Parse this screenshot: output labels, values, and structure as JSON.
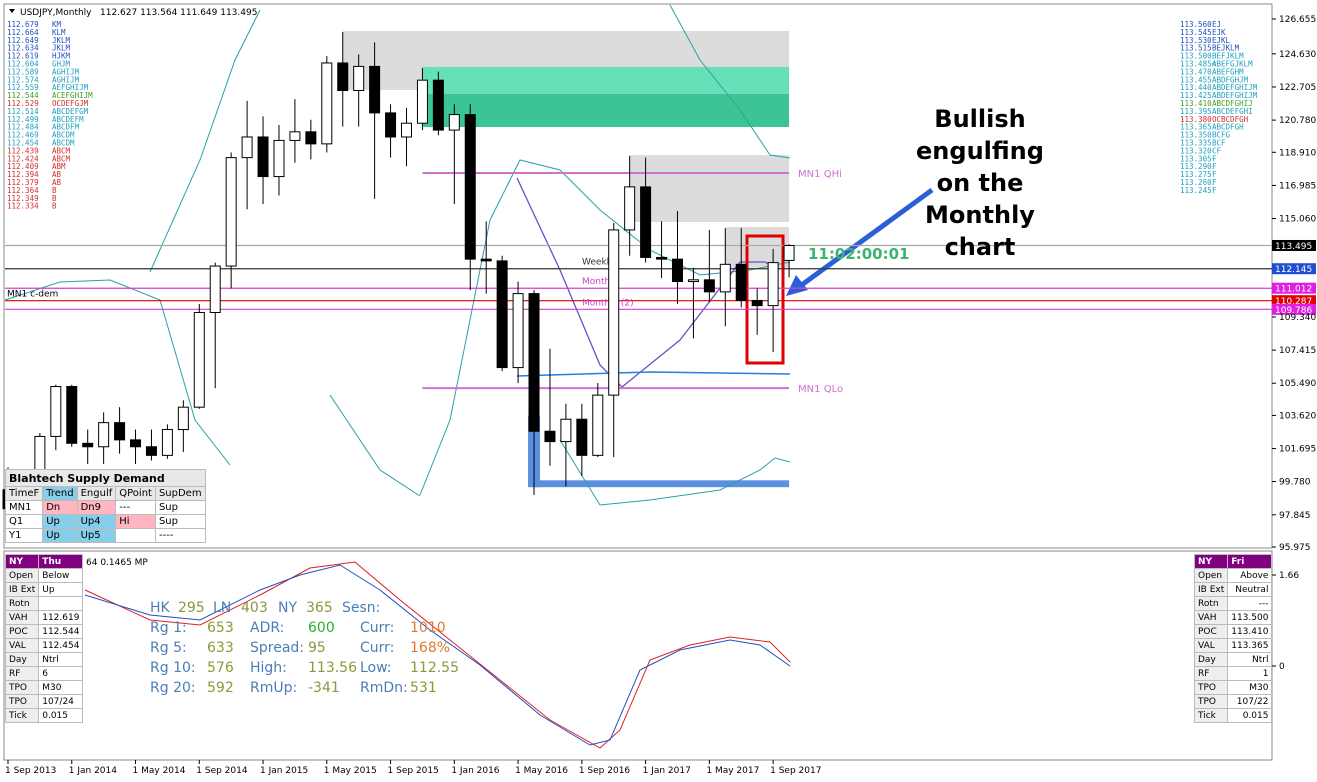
{
  "header": {
    "title": "USDJPY,Monthly",
    "ohlc": "112.627 113.564 111.649 113.495"
  },
  "chart_data": {
    "type": "candlestick",
    "x": [
      "2013-09-01",
      "2013-10-01",
      "2013-11-01",
      "2013-12-01",
      "2014-01-01",
      "2014-02-01",
      "2014-03-01",
      "2014-04-01",
      "2014-05-01",
      "2014-06-01",
      "2014-07-01",
      "2014-08-01",
      "2014-09-01",
      "2014-10-01",
      "2014-11-01",
      "2014-12-01",
      "2015-01-01",
      "2015-02-01",
      "2015-03-01",
      "2015-04-01",
      "2015-05-01",
      "2015-06-01",
      "2015-07-01",
      "2015-08-01",
      "2015-09-01",
      "2015-10-01",
      "2015-11-01",
      "2015-12-01",
      "2016-01-01",
      "2016-02-01",
      "2016-03-01",
      "2016-04-01",
      "2016-05-01",
      "2016-06-01",
      "2016-07-01",
      "2016-08-01",
      "2016-09-01",
      "2016-10-01",
      "2016-11-01",
      "2016-12-01",
      "2017-01-01",
      "2017-02-01",
      "2017-03-01",
      "2017-04-01",
      "2017-05-01",
      "2017-06-01",
      "2017-07-01",
      "2017-08-01",
      "2017-09-01",
      "2017-10-01"
    ],
    "open": [
      99.3,
      98.2,
      98.4,
      102.4,
      105.3,
      102.0,
      101.8,
      103.2,
      102.2,
      101.8,
      101.3,
      102.8,
      104.1,
      109.6,
      112.3,
      118.6,
      119.8,
      117.5,
      119.6,
      120.1,
      119.4,
      124.1,
      122.5,
      123.9,
      121.2,
      119.8,
      120.6,
      123.1,
      120.2,
      121.1,
      112.7,
      112.6,
      106.4,
      110.7,
      102.7,
      102.1,
      103.4,
      101.3,
      104.8,
      114.4,
      116.9,
      112.8,
      112.7,
      111.4,
      111.5,
      110.8,
      112.4,
      110.3,
      110.0,
      112.627
    ],
    "high": [
      100.6,
      99.0,
      102.6,
      105.4,
      105.4,
      102.8,
      103.8,
      104.1,
      102.8,
      102.8,
      103.1,
      104.5,
      110.1,
      112.5,
      118.9,
      121.9,
      121.0,
      120.5,
      122.0,
      120.8,
      124.5,
      125.9,
      124.6,
      125.3,
      121.7,
      121.5,
      123.8,
      123.6,
      121.7,
      121.7,
      114.9,
      112.9,
      111.4,
      110.9,
      107.5,
      104.3,
      104.3,
      105.5,
      114.8,
      118.7,
      118.6,
      114.9,
      115.5,
      112.2,
      114.4,
      114.5,
      114.5,
      111.0,
      113.3,
      113.564
    ],
    "low": [
      96.9,
      96.9,
      97.6,
      101.6,
      101.8,
      100.8,
      100.8,
      101.4,
      100.8,
      101.0,
      101.1,
      101.5,
      104.0,
      105.2,
      111.0,
      115.6,
      115.9,
      116.4,
      118.3,
      118.5,
      118.9,
      120.4,
      120.4,
      116.2,
      118.6,
      118.1,
      120.2,
      119.9,
      115.9,
      110.9,
      110.7,
      106.2,
      105.5,
      99.0,
      100.7,
      99.5,
      100.1,
      101.2,
      101.2,
      112.9,
      112.5,
      111.6,
      110.1,
      108.1,
      110.2,
      108.8,
      109.9,
      108.3,
      107.3,
      111.649
    ],
    "close": [
      98.2,
      98.4,
      102.4,
      105.3,
      102.0,
      101.8,
      103.2,
      102.2,
      101.8,
      101.3,
      102.8,
      104.1,
      109.6,
      112.3,
      118.6,
      119.8,
      117.5,
      119.6,
      120.1,
      119.4,
      124.1,
      122.5,
      123.9,
      121.2,
      119.8,
      120.6,
      123.1,
      120.2,
      121.1,
      112.7,
      112.6,
      106.4,
      110.7,
      102.7,
      102.1,
      103.4,
      101.3,
      104.8,
      114.4,
      116.9,
      112.8,
      112.7,
      111.4,
      111.5,
      110.8,
      112.4,
      110.3,
      110.0,
      112.5,
      113.495
    ],
    "ylim": [
      95.975,
      126.655
    ],
    "yticks": [
      126.655,
      {
        "value": 124.63,
        "label": "124.630"
      },
      122.705,
      {
        "value": 120.78,
        "label": "120.780"
      },
      {
        "value": 118.91,
        "label": "118.910"
      },
      116.985,
      {
        "value": 115.06,
        "label": "115.060"
      },
      {
        "value": 109.34,
        "label": "109.340"
      },
      107.415,
      {
        "value": 105.49,
        "label": "105.490"
      },
      {
        "value": 103.62,
        "label": "103.620"
      },
      101.695,
      {
        "value": 99.78,
        "label": "99.780"
      },
      97.845,
      95.975
    ],
    "xticks": [
      {
        "value": "2013-09-01",
        "label": "1 Sep 2013"
      },
      {
        "value": "2014-01-01",
        "label": "1 Jan 2014"
      },
      {
        "value": "2014-05-01",
        "label": "1 May 2014"
      },
      {
        "value": "2014-09-01",
        "label": "1 Sep 2014"
      },
      {
        "value": "2015-01-01",
        "label": "1 Jan 2015"
      },
      {
        "value": "2015-05-01",
        "label": "1 May 2015"
      },
      {
        "value": "2015-09-01",
        "label": "1 Sep 2015"
      },
      {
        "value": "2016-01-01",
        "label": "1 Jan 2016"
      },
      {
        "value": "2016-05-01",
        "label": "1 May 2016"
      },
      {
        "value": "2016-09-01",
        "label": "1 Sep 2016"
      },
      {
        "value": "2017-01-01",
        "label": "1 Jan 2017"
      },
      {
        "value": "2017-05-01",
        "label": "1 May 2017"
      },
      {
        "value": "2017-09-01",
        "label": "1 Sep 2017"
      }
    ],
    "zones": [
      {
        "start": "2015-06-01",
        "from": 122.53,
        "to": 125.96,
        "color": "#dcdcdc"
      },
      {
        "start": "2015-11-01",
        "from": 122.3,
        "to": 123.87,
        "color": "#66e0b8"
      },
      {
        "start": "2015-11-01",
        "from": 120.38,
        "to": 122.3,
        "color": "#3cc494"
      },
      {
        "start": "2016-12-01",
        "from": 114.86,
        "to": 118.75,
        "color": "#dcdcdc"
      },
      {
        "start": "2017-06-01",
        "from": 112.2,
        "to": 114.57,
        "color": "#dcdcdc"
      },
      {
        "start": "2016-06-01",
        "end": "2016-06-01",
        "from": 99.45,
        "to": 103.6,
        "color": "#5b8fe0"
      },
      {
        "start": "2016-06-01",
        "from": 99.45,
        "to": 99.85,
        "color": "#5b8fe0"
      }
    ],
    "levels": [
      {
        "label": "MN1 QHi",
        "value": 117.71,
        "start": "2015-11-01",
        "color": "#d070d0"
      },
      {
        "label": "MN1 QLo",
        "value": 105.21,
        "start": "2015-11-01",
        "color": "#d070d0"
      }
    ],
    "markers": [
      {
        "value": 113.495,
        "color": "#000000",
        "line": "#aaaaaa"
      },
      {
        "value": 112.145,
        "color": "#1f4fd0",
        "line": "#333333",
        "label": "Weekly",
        "label_pos": "middle"
      },
      {
        "value": 111.012,
        "color": "#e020e0",
        "line": "#d040d0",
        "label": "Monthly",
        "label_pos": "middle"
      },
      {
        "value": 110.287,
        "color": "#e00000",
        "line": "#e00000",
        "label": "MN1 c-dem",
        "label_pos": "left"
      },
      {
        "value": 109.786,
        "color": "#e020e0",
        "line": "#d040d0",
        "label": "Monthly (2)",
        "label_pos": "middle"
      }
    ],
    "countdown": "11:02:00:01",
    "annotation": [
      "Bullish",
      "engulfing",
      "on the",
      "Monthly",
      "chart"
    ]
  },
  "left_profile": [
    {
      "price": "112.679",
      "tpo": "KM",
      "color": "#2050c0"
    },
    {
      "price": "112.664",
      "tpo": "KLM",
      "color": "#2050c0"
    },
    {
      "price": "112.649",
      "tpo": "JKLM",
      "color": "#2050c0"
    },
    {
      "price": "112.634",
      "tpo": "JKLM",
      "color": "#2050c0"
    },
    {
      "price": "112.619",
      "tpo": "HJKM",
      "color": "#2050c0"
    },
    {
      "price": "112.604",
      "tpo": "GHJM",
      "color": "#20a0c0"
    },
    {
      "price": "112.589",
      "tpo": "AGHIJM",
      "color": "#20a0c0"
    },
    {
      "price": "112.574",
      "tpo": "AGHIJM",
      "color": "#20a0c0"
    },
    {
      "price": "112.559",
      "tpo": "AEFGHIJM",
      "color": "#20a0c0"
    },
    {
      "price": "112.544",
      "tpo": "ACEFGHIJM",
      "color": "#40a020"
    },
    {
      "price": "112.529",
      "tpo": "OCDEFGJM",
      "color": "#d03030"
    },
    {
      "price": "112.514",
      "tpo": "ABCDEFGM",
      "color": "#20a0c0"
    },
    {
      "price": "112.499",
      "tpo": "ABCDEFM",
      "color": "#20a0c0"
    },
    {
      "price": "112.484",
      "tpo": "ABCDFM",
      "color": "#20a0c0"
    },
    {
      "price": "112.469",
      "tpo": "ABCDM",
      "color": "#20a0c0"
    },
    {
      "price": "112.454",
      "tpo": "ABCDM",
      "color": "#20a0c0"
    },
    {
      "price": "112.439",
      "tpo": "ABCM",
      "color": "#d03030"
    },
    {
      "price": "112.424",
      "tpo": "ABCM",
      "color": "#d03030"
    },
    {
      "price": "112.409",
      "tpo": "ABM",
      "color": "#d03030"
    },
    {
      "price": "112.394",
      "tpo": "AB",
      "color": "#d03030"
    },
    {
      "price": "112.379",
      "tpo": "AB",
      "color": "#d03030"
    },
    {
      "price": "112.364",
      "tpo": "B",
      "color": "#d03030"
    },
    {
      "price": "112.349",
      "tpo": "B",
      "color": "#d03030"
    },
    {
      "price": "112.334",
      "tpo": "B",
      "color": "#d03030"
    }
  ],
  "right_profile": [
    {
      "price": "113.560",
      "tpo": "EJ",
      "color": "#2050c0"
    },
    {
      "price": "113.545",
      "tpo": "EJK",
      "color": "#2050c0"
    },
    {
      "price": "113.530",
      "tpo": "EJKL",
      "color": "#2050c0"
    },
    {
      "price": "113.515",
      "tpo": "BEJKLM",
      "color": "#2050c0"
    },
    {
      "price": "113.500",
      "tpo": "BEFJKLM",
      "color": "#20a0c0"
    },
    {
      "price": "113.485<",
      "tpo": "ABEFGJKLM",
      "color": "#20a0c0"
    },
    {
      "price": "113.470",
      "tpo": "ABEFGHM",
      "color": "#20a0c0"
    },
    {
      "price": "113.455",
      "tpo": "ABDFGHJM",
      "color": "#20a0c0"
    },
    {
      "price": "113.440",
      "tpo": "ABDEFGHIJM",
      "color": "#20a0c0"
    },
    {
      "price": "113.425",
      "tpo": "ABDEFGHIJM",
      "color": "#20a0c0"
    },
    {
      "price": "113.410",
      "tpo": "ABCDFGHIJ",
      "color": "#40a020"
    },
    {
      "price": "113.395",
      "tpo": "ABCDEFGHI",
      "color": "#20a0c0"
    },
    {
      "price": "113.380",
      "tpo": "OCBCDFGH",
      "color": "#d03030"
    },
    {
      "price": "113.365",
      "tpo": "ABCDFGH",
      "color": "#20a0c0"
    },
    {
      "price": "113.350",
      "tpo": "BCFG",
      "color": "#20a0c0"
    },
    {
      "price": "113.335",
      "tpo": "BCF",
      "color": "#20a0c0"
    },
    {
      "price": "113.320",
      "tpo": "CF",
      "color": "#20a0c0"
    },
    {
      "price": "113.305",
      "tpo": "F",
      "color": "#20a0c0"
    },
    {
      "price": "113.290",
      "tpo": "F",
      "color": "#20a0c0"
    },
    {
      "price": "113.275",
      "tpo": "F",
      "color": "#20a0c0"
    },
    {
      "price": "113.260",
      "tpo": "F",
      "color": "#20a0c0"
    },
    {
      "price": "113.245",
      "tpo": "F",
      "color": "#20a0c0"
    }
  ],
  "supply_demand": {
    "title": "Blahtech Supply Demand",
    "headers": [
      "TimeF",
      "Trend",
      "Engulf",
      "QPoint",
      "SupDem"
    ],
    "rows": [
      {
        "timeframe": "MN1",
        "trend": "Dn",
        "engulf": "Dn9",
        "qpoint": "---",
        "supdem": "Sup"
      },
      {
        "timeframe": "Q1",
        "trend": "Up",
        "engulf": "Up4",
        "qpoint": "Hi",
        "supdem": "Sup"
      },
      {
        "timeframe": "Y1",
        "trend": "Up",
        "engulf": "Up5",
        "supdem": "----"
      }
    ]
  },
  "oscillator": {
    "label": "64 0.1465 MP",
    "yticks": [
      1.66,
      0
    ]
  },
  "stats": [
    [
      {
        "label": "HK",
        "value": "295"
      },
      {
        "label": "LN",
        "value": "403"
      },
      {
        "label": "NY",
        "value": "365"
      },
      {
        "label": "Sesn:"
      }
    ],
    [
      {
        "label": "Rg 1:",
        "value": "653"
      },
      {
        "label": "ADR:",
        "value": "600"
      },
      {
        "label": "Curr:",
        "value": "1010"
      }
    ],
    [
      {
        "label": "Rg 5:",
        "value": "633"
      },
      {
        "label": "Spread:",
        "value": "95"
      },
      {
        "label": "Curr:",
        "value": "168%"
      }
    ],
    [
      {
        "label": "Rg 10:",
        "value": "576"
      },
      {
        "label": "High:",
        "value": "113.56"
      },
      {
        "label": "Low:",
        "value": "112.55"
      }
    ],
    [
      {
        "label": "Rg 20:",
        "value": "592"
      },
      {
        "label": "RmUp:",
        "value": "-341"
      },
      {
        "label": "RmDn:",
        "value": "531"
      }
    ]
  ],
  "left_panel": {
    "head": [
      "NY",
      "Thu"
    ],
    "rows": [
      [
        "Open",
        "Below"
      ],
      [
        "IB Ext",
        "Up"
      ],
      [
        "Rotn"
      ],
      [
        "VAH",
        "112.619"
      ],
      [
        "POC",
        "112.544"
      ],
      [
        "VAL",
        "112.454"
      ],
      [
        "Day",
        "Ntrl"
      ],
      [
        "RF",
        "6"
      ],
      [
        "TPO",
        "M30"
      ],
      [
        "TPO",
        "107/24"
      ],
      [
        "Tick",
        "0.015"
      ]
    ]
  },
  "right_panel": {
    "head": [
      "NY",
      "Fri"
    ],
    "rows": [
      [
        "Open",
        "Above"
      ],
      [
        "IB Ext",
        "Neutral"
      ],
      [
        "Rotn",
        "---"
      ],
      [
        "VAH",
        "113.500"
      ],
      [
        "POC",
        "113.410"
      ],
      [
        "VAL",
        "113.365"
      ],
      [
        "Day",
        "Ntrl"
      ],
      [
        "RF",
        "1"
      ],
      [
        "TPO",
        "M30"
      ],
      [
        "TPO",
        "107/22"
      ],
      [
        "Tick",
        "0.015"
      ]
    ]
  }
}
